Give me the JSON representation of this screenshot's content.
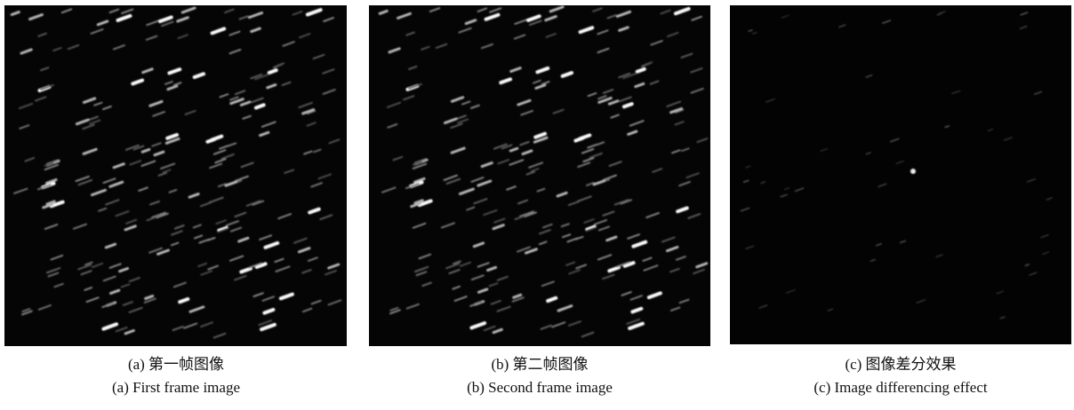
{
  "panels": [
    {
      "caption_zh": "(a) 第一帧图像",
      "caption_en": "(a) First frame image"
    },
    {
      "caption_zh": "(b) 第二帧图像",
      "caption_en": "(b) Second frame image"
    },
    {
      "caption_zh": "(c) 图像差分效果",
      "caption_en": "(c) Image differencing effect"
    }
  ]
}
